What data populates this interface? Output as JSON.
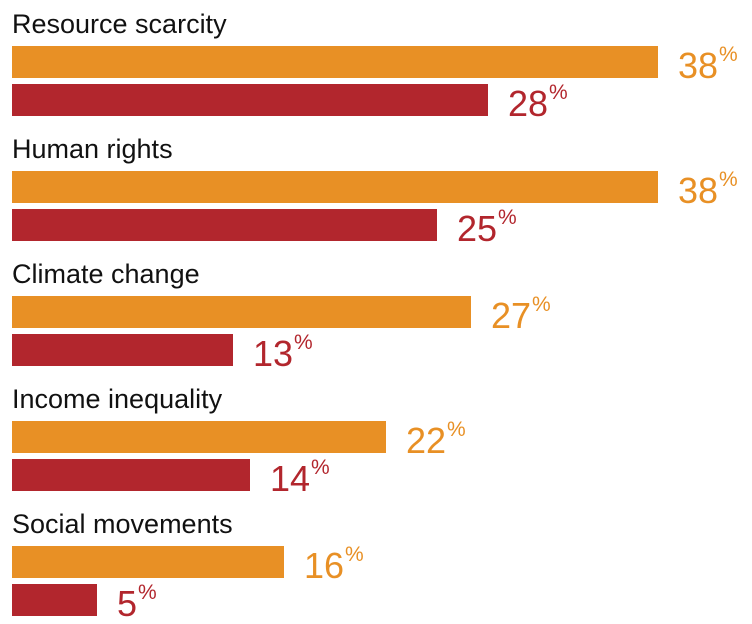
{
  "chart_data": {
    "type": "bar",
    "orientation": "horizontal",
    "categories": [
      "Resource scarcity",
      "Human rights",
      "Climate change",
      "Income inequality",
      "Social movements"
    ],
    "series": [
      {
        "values": [
          38,
          38,
          27,
          22,
          16
        ],
        "color": "#E89025"
      },
      {
        "values": [
          28,
          25,
          13,
          14,
          5
        ],
        "color": "#B2262D"
      }
    ],
    "value_suffix": "%",
    "xlim": [
      0,
      38
    ],
    "grid": false,
    "legend": "none"
  }
}
